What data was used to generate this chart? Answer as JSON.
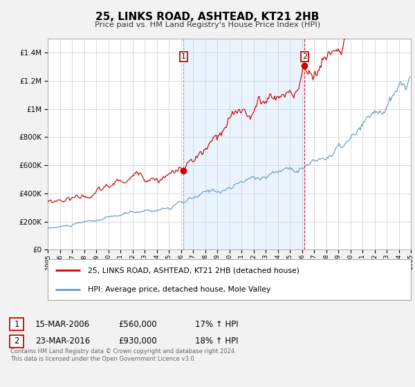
{
  "title": "25, LINKS ROAD, ASHTEAD, KT21 2HB",
  "subtitle": "Price paid vs. HM Land Registry's House Price Index (HPI)",
  "ylim": [
    0,
    1500000
  ],
  "yticks": [
    0,
    200000,
    400000,
    600000,
    800000,
    1000000,
    1200000,
    1400000
  ],
  "x_start_year": 1995,
  "x_end_year": 2025,
  "background_color": "#f2f2f2",
  "plot_bg_color": "#ffffff",
  "grid_color": "#cccccc",
  "red_color": "#cc0000",
  "blue_color": "#6699cc",
  "shade_color": "#ddeeff",
  "marker1_date": 2006.21,
  "marker1_value": 560000,
  "marker1_label": "1",
  "marker2_date": 2016.22,
  "marker2_value": 930000,
  "marker2_label": "2",
  "legend_red_label": "25, LINKS ROAD, ASHTEAD, KT21 2HB (detached house)",
  "legend_blue_label": "HPI: Average price, detached house, Mole Valley",
  "table_row1": [
    "1",
    "15-MAR-2006",
    "£560,000",
    "17% ↑ HPI"
  ],
  "table_row2": [
    "2",
    "23-MAR-2016",
    "£930,000",
    "18% ↑ HPI"
  ],
  "footer": "Contains HM Land Registry data © Crown copyright and database right 2024.\nThis data is licensed under the Open Government Licence v3.0."
}
